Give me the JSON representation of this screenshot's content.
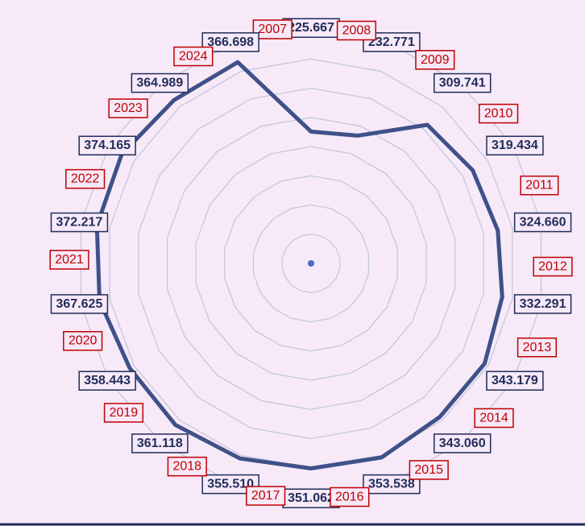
{
  "chart_data": {
    "type": "radar",
    "categories": [
      "2007",
      "2008",
      "2009",
      "2010",
      "2011",
      "2012",
      "2013",
      "2014",
      "2015",
      "2016",
      "2017",
      "2018",
      "2019",
      "2020",
      "2021",
      "2022",
      "2023",
      "2024"
    ],
    "values": [
      225.667,
      232.771,
      309.741,
      319.434,
      324.66,
      332.291,
      343.179,
      343.06,
      353.538,
      351.062,
      355.51,
      361.118,
      358.443,
      367.625,
      372.217,
      374.165,
      364.989,
      366.698
    ],
    "value_labels": [
      "225.667",
      "232.771",
      "309.741",
      "319.434",
      "324.660",
      "332.291",
      "343.179",
      "343.060",
      "353.538",
      "351.062",
      "355.510",
      "361.118",
      "358.443",
      "367.625",
      "372.217",
      "374.165",
      "364.989",
      "366.698"
    ],
    "color": "#3f5189",
    "ylim": [
      0,
      400
    ],
    "yticks": [
      0,
      50,
      100,
      150,
      200,
      250,
      300,
      350,
      400
    ],
    "grid": true
  }
}
